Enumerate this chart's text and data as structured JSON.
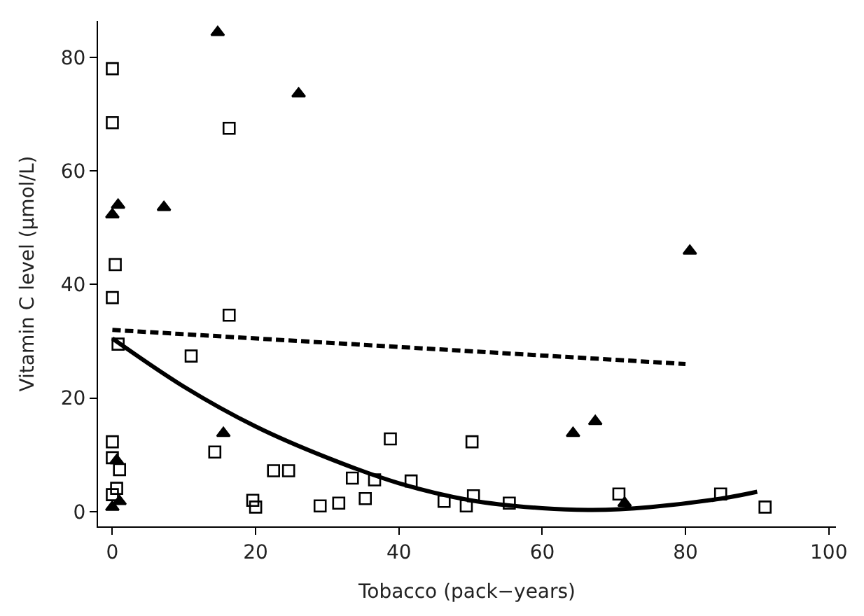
{
  "chart_data": {
    "type": "scatter",
    "xlabel": "Tobacco (pack−years)",
    "ylabel": "Vitamin C level (µmol/L)",
    "xlim": [
      -2,
      101
    ],
    "ylim": [
      -2.6,
      86.4
    ],
    "xticks": [
      0,
      20,
      40,
      60,
      80,
      100
    ],
    "yticks": [
      0,
      20,
      40,
      60,
      80
    ],
    "legend": false,
    "series": [
      {
        "marker": "square",
        "color": "#000000",
        "x": [
          0,
          0,
          16.3,
          0.4,
          0,
          16.3,
          0.8,
          11,
          0,
          0,
          1,
          14.3,
          0.6,
          0,
          22.5,
          24.6,
          19.6,
          20,
          29,
          31.6,
          33.5,
          35.3,
          36.6,
          38.8,
          41.7,
          46.3,
          49.4,
          50.2,
          50.4,
          55.4,
          70.7,
          84.9,
          91.1
        ],
        "values": [
          78,
          68.5,
          67.5,
          43.5,
          37.7,
          34.6,
          29.5,
          27.4,
          12.3,
          9.5,
          7.4,
          10.5,
          4.1,
          3,
          7.2,
          7.2,
          2,
          0.8,
          1,
          1.5,
          5.9,
          2.3,
          5.6,
          12.8,
          5.4,
          1.8,
          1,
          12.3,
          2.8,
          1.5,
          3.1,
          3.1,
          0.8
        ]
      },
      {
        "marker": "triangle",
        "color": "#000000",
        "x": [
          14.7,
          26,
          7.2,
          0.8,
          0,
          15.5,
          0.6,
          0,
          1,
          64.3,
          67.4,
          71.5,
          80.6
        ],
        "values": [
          84.4,
          73.6,
          53.6,
          54,
          52.3,
          13.8,
          9,
          0.8,
          1.8,
          13.8,
          15.9,
          1.5,
          45.9
        ]
      },
      {
        "type": "line",
        "marker": "none",
        "line_style": "dashed",
        "color": "#000000",
        "x": [
          0,
          80
        ],
        "values": [
          32,
          26
        ]
      },
      {
        "type": "line",
        "marker": "none",
        "line_style": "solid",
        "color": "#000000",
        "x": [
          0,
          10,
          20,
          30,
          40,
          50,
          60,
          67,
          75,
          85,
          90
        ],
        "values": [
          30.5,
          22,
          15,
          9.5,
          5,
          2,
          0.6,
          0.3,
          0.8,
          2.3,
          3.5
        ]
      }
    ]
  }
}
